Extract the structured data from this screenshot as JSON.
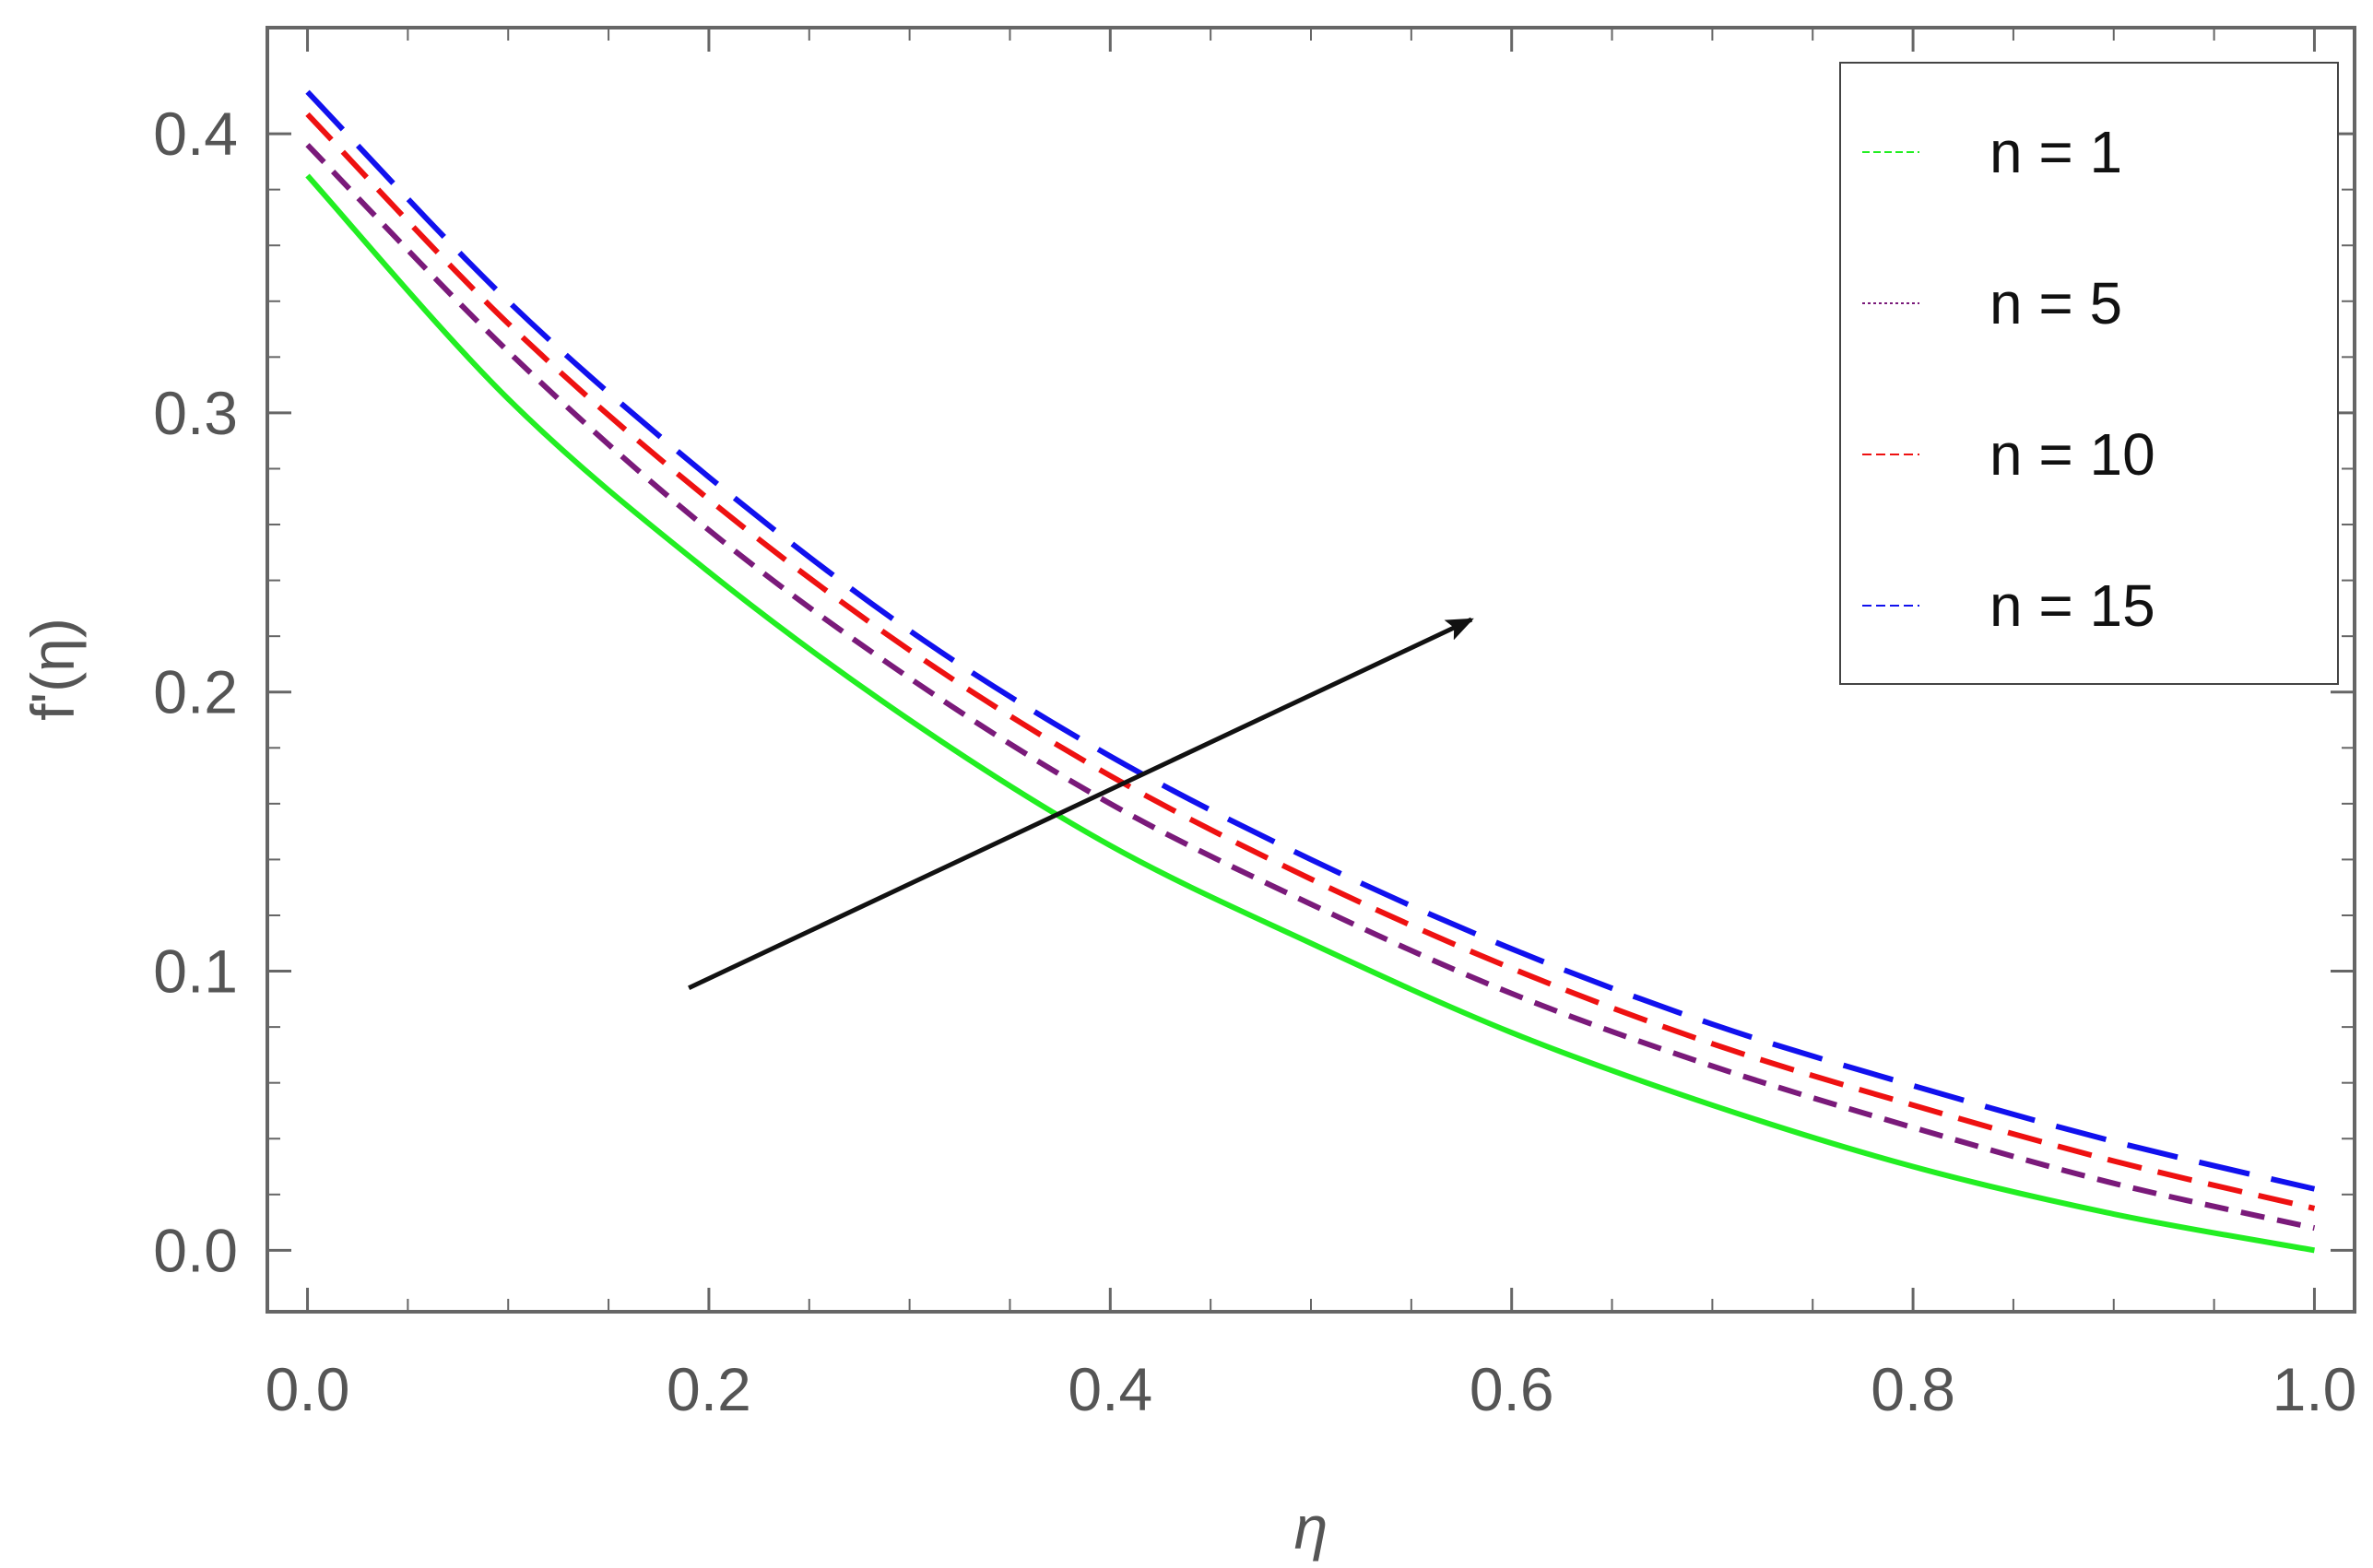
{
  "chart_data": {
    "type": "line",
    "title": "",
    "xlabel": "η",
    "ylabel": "f'(η)",
    "xlim": [
      -0.02,
      1.02
    ],
    "ylim": [
      -0.022,
      0.438
    ],
    "x_ticks": [
      0.0,
      0.2,
      0.4,
      0.6,
      0.8,
      1.0
    ],
    "x_tick_labels": [
      "0.0",
      "0.2",
      "0.4",
      "0.6",
      "0.8",
      "1.0"
    ],
    "y_ticks": [
      0.0,
      0.1,
      0.2,
      0.3,
      0.4
    ],
    "y_tick_labels": [
      "0.0",
      "0.1",
      "0.2",
      "0.3",
      "0.4"
    ],
    "grid": false,
    "legend_position": "top-right",
    "series": [
      {
        "name": "n = 1",
        "color": "#22ee22",
        "style": "solid",
        "x": [
          0.0,
          0.1,
          0.2,
          0.3,
          0.4,
          0.5,
          0.6,
          0.7,
          0.8,
          0.9,
          1.0
        ],
        "y": [
          0.385,
          0.305,
          0.243,
          0.19,
          0.145,
          0.11,
          0.078,
          0.052,
          0.03,
          0.013,
          0.0
        ]
      },
      {
        "name": "n = 5",
        "color": "#7a1a7a",
        "style": "short-dash",
        "x": [
          0.0,
          0.1,
          0.2,
          0.3,
          0.4,
          0.5,
          0.6,
          0.7,
          0.8,
          0.9,
          1.0
        ],
        "y": [
          0.396,
          0.322,
          0.258,
          0.205,
          0.16,
          0.124,
          0.092,
          0.066,
          0.044,
          0.024,
          0.008
        ]
      },
      {
        "name": "n = 10",
        "color": "#ee1111",
        "style": "medium-dash",
        "x": [
          0.0,
          0.1,
          0.2,
          0.3,
          0.4,
          0.5,
          0.6,
          0.7,
          0.8,
          0.9,
          1.0
        ],
        "y": [
          0.407,
          0.332,
          0.269,
          0.215,
          0.17,
          0.133,
          0.101,
          0.074,
          0.052,
          0.032,
          0.015
        ]
      },
      {
        "name": "n = 15",
        "color": "#1111ee",
        "style": "long-dash",
        "x": [
          0.0,
          0.1,
          0.2,
          0.3,
          0.4,
          0.5,
          0.6,
          0.7,
          0.8,
          0.9,
          1.0
        ],
        "y": [
          0.415,
          0.34,
          0.277,
          0.222,
          0.177,
          0.14,
          0.108,
          0.081,
          0.059,
          0.039,
          0.022
        ]
      }
    ],
    "annotations": [
      {
        "type": "arrow",
        "from": [
          0.19,
          0.094
        ],
        "to": [
          0.58,
          0.226
        ],
        "color": "#111111"
      }
    ]
  }
}
